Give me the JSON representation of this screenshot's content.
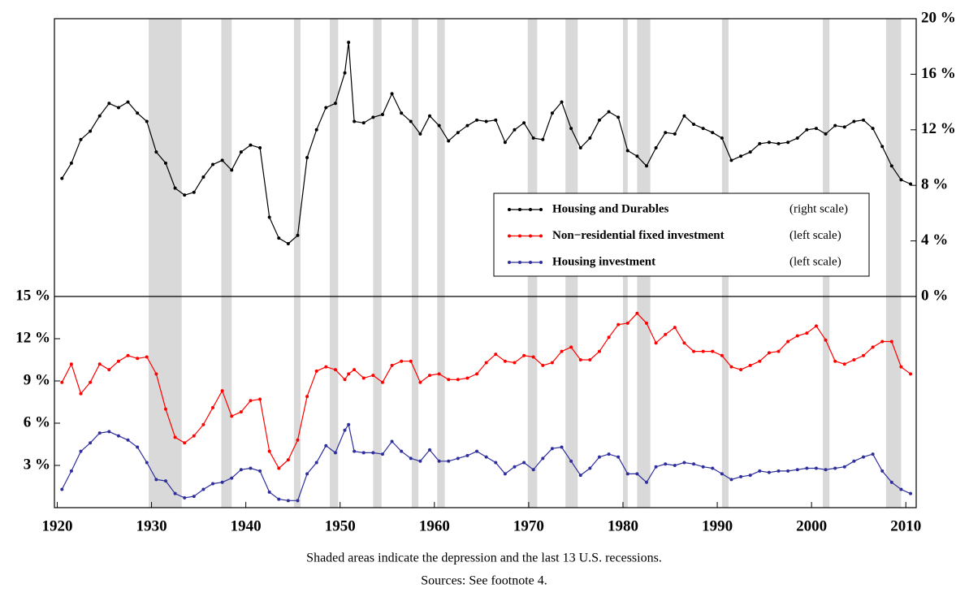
{
  "chart_data": {
    "type": "line",
    "x": [
      1920.5,
      1921.5,
      1922.5,
      1923.5,
      1924.5,
      1925.5,
      1926.5,
      1927.5,
      1928.5,
      1929.5,
      1930.5,
      1931.5,
      1932.5,
      1933.5,
      1934.5,
      1935.5,
      1936.5,
      1937.5,
      1938.5,
      1939.5,
      1940.5,
      1941.5,
      1942.5,
      1943.5,
      1944.5,
      1945.5,
      1946.5,
      1947.5,
      1948.5,
      1949.5,
      1950.5,
      1950.9,
      1951.5,
      1952.5,
      1953.5,
      1954.5,
      1955.5,
      1956.5,
      1957.5,
      1958.5,
      1959.5,
      1960.5,
      1961.5,
      1962.5,
      1963.5,
      1964.5,
      1965.5,
      1966.5,
      1967.5,
      1968.5,
      1969.5,
      1970.5,
      1971.5,
      1972.5,
      1973.5,
      1974.5,
      1975.5,
      1976.5,
      1977.5,
      1978.5,
      1979.5,
      1980.5,
      1981.5,
      1982.5,
      1983.5,
      1984.5,
      1985.5,
      1986.5,
      1987.5,
      1988.5,
      1989.5,
      1990.5,
      1991.5,
      1992.5,
      1993.5,
      1994.5,
      1995.5,
      1996.5,
      1997.5,
      1998.5,
      1999.5,
      2000.5,
      2001.5,
      2002.5,
      2003.5,
      2004.5,
      2005.5,
      2006.5,
      2007.5,
      2008.5,
      2009.5,
      2010.5
    ],
    "series": [
      {
        "name": "Housing and Durables",
        "scale_label": "(right scale)",
        "color": "#000000",
        "axis": "y2",
        "values": [
          8.5,
          9.6,
          11.3,
          11.9,
          13.0,
          13.9,
          13.6,
          14.0,
          13.2,
          12.6,
          10.4,
          9.6,
          7.8,
          7.3,
          7.5,
          8.6,
          9.5,
          9.8,
          9.1,
          10.4,
          10.9,
          10.7,
          5.7,
          4.2,
          3.8,
          4.4,
          10.0,
          12.0,
          13.6,
          13.9,
          16.1,
          18.3,
          12.6,
          12.5,
          12.9,
          13.1,
          14.6,
          13.2,
          12.6,
          11.7,
          13.0,
          12.3,
          11.2,
          11.8,
          12.3,
          12.7,
          12.6,
          12.7,
          11.1,
          12.0,
          12.5,
          11.4,
          11.3,
          13.2,
          14.0,
          12.1,
          10.7,
          11.4,
          12.7,
          13.3,
          12.9,
          10.5,
          10.1,
          9.4,
          10.7,
          11.8,
          11.7,
          13.0,
          12.4,
          12.1,
          11.8,
          11.4,
          9.8,
          10.1,
          10.4,
          11.0,
          11.1,
          11.0,
          11.1,
          11.4,
          12.0,
          12.1,
          11.7,
          12.3,
          12.2,
          12.6,
          12.7,
          12.1,
          10.8,
          9.4,
          8.4,
          8.1
        ]
      },
      {
        "name": "Non−residential fixed investment",
        "scale_label": "(left scale)",
        "color": "#ff0000",
        "values": [
          8.9,
          10.2,
          8.1,
          8.9,
          10.2,
          9.8,
          10.4,
          10.8,
          10.6,
          10.7,
          9.5,
          7.0,
          5.0,
          4.6,
          5.1,
          5.9,
          7.1,
          8.3,
          6.5,
          6.8,
          7.6,
          7.7,
          4.0,
          2.8,
          3.4,
          4.8,
          7.9,
          9.7,
          10.0,
          9.8,
          9.1,
          9.5,
          9.8,
          9.2,
          9.4,
          8.9,
          10.1,
          10.4,
          10.4,
          8.9,
          9.4,
          9.5,
          9.1,
          9.1,
          9.2,
          9.5,
          10.3,
          10.9,
          10.4,
          10.3,
          10.8,
          10.7,
          10.1,
          10.3,
          11.1,
          11.4,
          10.5,
          10.5,
          11.1,
          12.1,
          13.0,
          13.1,
          13.8,
          13.1,
          11.7,
          12.3,
          12.8,
          11.7,
          11.1,
          11.1,
          11.1,
          10.8,
          10.0,
          9.8,
          10.1,
          10.4,
          11.0,
          11.1,
          11.8,
          12.2,
          12.4,
          12.9,
          11.9,
          10.4,
          10.2,
          10.5,
          10.8,
          11.4,
          11.8,
          11.8,
          10.0,
          9.5
        ]
      },
      {
        "name": "Housing investment",
        "scale_label": "(left scale)",
        "color": "#2e2e9c",
        "values": [
          1.3,
          2.6,
          4.0,
          4.6,
          5.3,
          5.4,
          5.1,
          4.8,
          4.3,
          3.2,
          2.0,
          1.9,
          1.0,
          0.7,
          0.8,
          1.3,
          1.7,
          1.8,
          2.1,
          2.7,
          2.8,
          2.6,
          1.1,
          0.6,
          0.5,
          0.5,
          2.4,
          3.2,
          4.4,
          3.9,
          5.5,
          5.9,
          4.0,
          3.9,
          3.9,
          3.8,
          4.7,
          4.0,
          3.5,
          3.3,
          4.1,
          3.3,
          3.3,
          3.5,
          3.7,
          4.0,
          3.6,
          3.2,
          2.4,
          2.9,
          3.2,
          2.7,
          3.5,
          4.2,
          4.3,
          3.3,
          2.3,
          2.8,
          3.6,
          3.8,
          3.6,
          2.4,
          2.4,
          1.8,
          2.9,
          3.1,
          3.0,
          3.2,
          3.1,
          2.9,
          2.8,
          2.4,
          2.0,
          2.2,
          2.3,
          2.6,
          2.5,
          2.6,
          2.6,
          2.7,
          2.8,
          2.8,
          2.7,
          2.8,
          2.9,
          3.3,
          3.6,
          3.8,
          2.6,
          1.8,
          1.3,
          1.0
        ]
      }
    ],
    "xlim": [
      1919.7,
      2011.1
    ],
    "xticks": [
      1920,
      1930,
      1940,
      1950,
      1960,
      1970,
      1980,
      1990,
      2000,
      2010
    ],
    "ylim": [
      0,
      15
    ],
    "yticks": [
      {
        "value": 3,
        "label": "3 %"
      },
      {
        "value": 6,
        "label": "6 %"
      },
      {
        "value": 9,
        "label": "9 %"
      },
      {
        "value": 12,
        "label": "12 %"
      },
      {
        "value": 15,
        "label": "15 %"
      }
    ],
    "y2lim": [
      0,
      20
    ],
    "y2ticks": [
      {
        "value": 0,
        "label": "0 %"
      },
      {
        "value": 4,
        "label": "4 %"
      },
      {
        "value": 8,
        "label": "8 %"
      },
      {
        "value": 12,
        "label": "12 %"
      },
      {
        "value": 16,
        "label": "16 %"
      },
      {
        "value": 20,
        "label": "20 %"
      }
    ],
    "shaded_periods": [
      [
        1929.7,
        1933.2
      ],
      [
        1937.4,
        1938.5
      ],
      [
        1945.1,
        1945.8
      ],
      [
        1948.9,
        1949.8
      ],
      [
        1953.5,
        1954.4
      ],
      [
        1957.6,
        1958.3
      ],
      [
        1960.3,
        1961.1
      ],
      [
        1969.9,
        1970.9
      ],
      [
        1973.9,
        1975.2
      ],
      [
        1980.0,
        1980.5
      ],
      [
        1981.5,
        1982.9
      ],
      [
        1990.5,
        1991.2
      ],
      [
        2001.2,
        2001.9
      ],
      [
        2007.9,
        2009.5
      ]
    ],
    "shade_color": "#d9d9d9",
    "notes": [
      "Shaded areas indicate the depression and the last 13 U.S. recessions.",
      "Sources: See footnote 4."
    ]
  }
}
